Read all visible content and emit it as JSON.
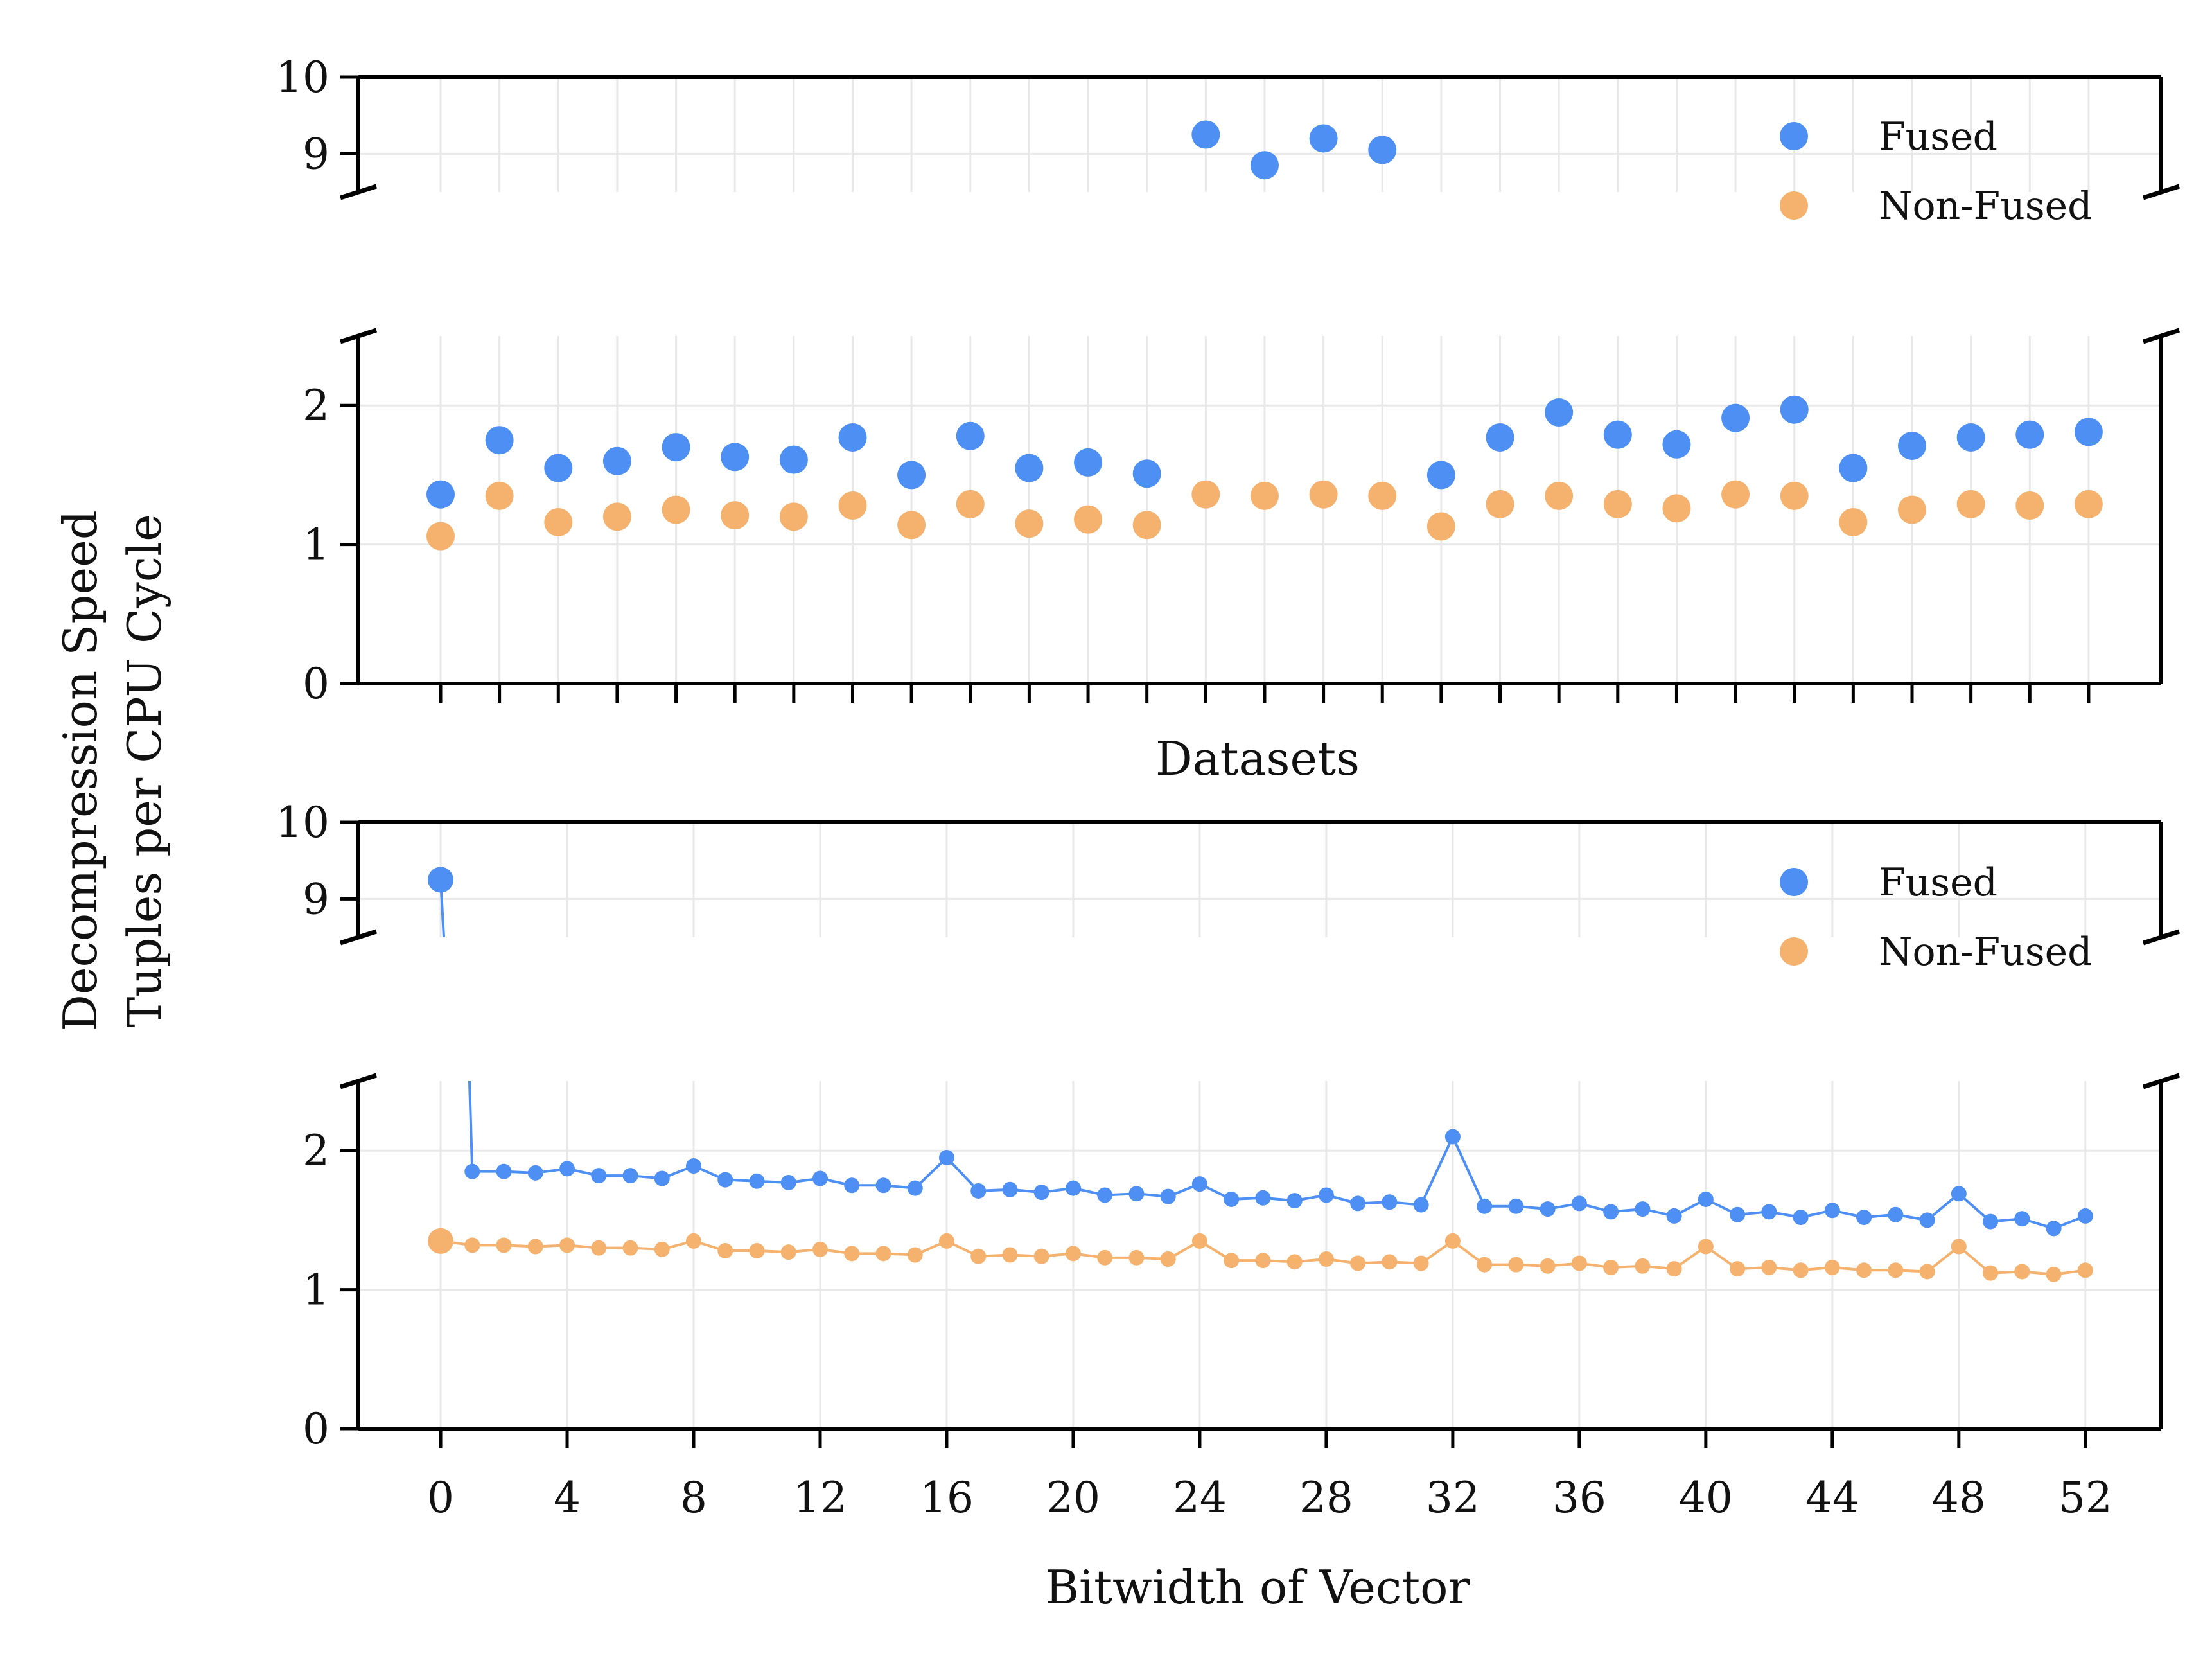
{
  "figure": {
    "ylabel_line1": "Decompression Speed",
    "ylabel_line2": "Tuples per CPU Cycle"
  },
  "colors": {
    "fused": "#4d8ff2",
    "non_fused": "#f5b26e",
    "grid": "#e8e8e8",
    "axis": "#000000"
  },
  "legend": {
    "fused": "Fused",
    "non_fused": "Non-Fused",
    "placement": "upper-right"
  },
  "chart_data": [
    {
      "type": "scatter",
      "xlabel": "Datasets",
      "x_tick_labels_shown": false,
      "broken_y_axis": true,
      "ylim_upper": [
        8.5,
        10
      ],
      "ylim_lower": [
        0,
        2.5
      ],
      "yticks_upper": [
        "9",
        "10"
      ],
      "yticks_lower": [
        "0",
        "1",
        "2"
      ],
      "grid": true,
      "legend_placement": "upper-right",
      "series": [
        {
          "name": "Fused",
          "values": [
            1.36,
            1.75,
            1.55,
            1.6,
            1.7,
            1.63,
            1.61,
            1.77,
            1.5,
            1.78,
            1.55,
            1.59,
            1.51,
            9.25,
            8.85,
            9.2,
            9.05,
            1.5,
            1.77,
            1.95,
            1.79,
            1.72,
            1.91,
            1.97,
            1.55,
            1.71,
            1.77,
            1.79,
            1.81
          ]
        },
        {
          "name": "Non-Fused",
          "values": [
            1.06,
            1.35,
            1.16,
            1.2,
            1.25,
            1.21,
            1.2,
            1.28,
            1.14,
            1.29,
            1.15,
            1.18,
            1.14,
            1.36,
            1.35,
            1.36,
            1.35,
            1.13,
            1.29,
            1.35,
            1.29,
            1.26,
            1.36,
            1.35,
            1.16,
            1.25,
            1.29,
            1.28,
            1.29
          ]
        }
      ]
    },
    {
      "type": "line",
      "xlabel": "Bitwidth of Vector",
      "x": [
        0,
        1,
        2,
        3,
        4,
        5,
        6,
        7,
        8,
        9,
        10,
        11,
        12,
        13,
        14,
        15,
        16,
        17,
        18,
        19,
        20,
        21,
        22,
        23,
        24,
        25,
        26,
        27,
        28,
        29,
        30,
        31,
        32,
        33,
        34,
        35,
        36,
        37,
        38,
        39,
        40,
        41,
        42,
        43,
        44,
        45,
        46,
        47,
        48,
        49,
        50,
        51,
        52
      ],
      "xticks": [
        "0",
        "4",
        "8",
        "12",
        "16",
        "20",
        "24",
        "28",
        "32",
        "36",
        "40",
        "44",
        "48",
        "52"
      ],
      "broken_y_axis": true,
      "ylim_upper": [
        8.5,
        10
      ],
      "ylim_lower": [
        0,
        2.5
      ],
      "yticks_upper": [
        "9",
        "10"
      ],
      "yticks_lower": [
        "0",
        "1",
        "2"
      ],
      "grid": true,
      "legend_placement": "upper-right",
      "series": [
        {
          "name": "Fused",
          "values": [
            9.25,
            1.85,
            1.85,
            1.84,
            1.87,
            1.82,
            1.82,
            1.8,
            1.89,
            1.79,
            1.78,
            1.77,
            1.8,
            1.75,
            1.75,
            1.73,
            1.95,
            1.71,
            1.72,
            1.7,
            1.73,
            1.68,
            1.69,
            1.67,
            1.76,
            1.65,
            1.66,
            1.64,
            1.68,
            1.62,
            1.63,
            1.61,
            2.1,
            1.6,
            1.6,
            1.58,
            1.62,
            1.56,
            1.58,
            1.53,
            1.65,
            1.54,
            1.56,
            1.52,
            1.57,
            1.52,
            1.54,
            1.5,
            1.69,
            1.49,
            1.51,
            1.44,
            1.53
          ]
        },
        {
          "name": "Non-Fused",
          "values": [
            1.35,
            1.32,
            1.32,
            1.31,
            1.32,
            1.3,
            1.3,
            1.29,
            1.35,
            1.28,
            1.28,
            1.27,
            1.29,
            1.26,
            1.26,
            1.25,
            1.35,
            1.24,
            1.25,
            1.24,
            1.26,
            1.23,
            1.23,
            1.22,
            1.35,
            1.21,
            1.21,
            1.2,
            1.22,
            1.19,
            1.2,
            1.19,
            1.35,
            1.18,
            1.18,
            1.17,
            1.19,
            1.16,
            1.17,
            1.15,
            1.31,
            1.15,
            1.16,
            1.14,
            1.16,
            1.14,
            1.14,
            1.13,
            1.31,
            1.12,
            1.13,
            1.11,
            1.14
          ]
        }
      ]
    }
  ]
}
